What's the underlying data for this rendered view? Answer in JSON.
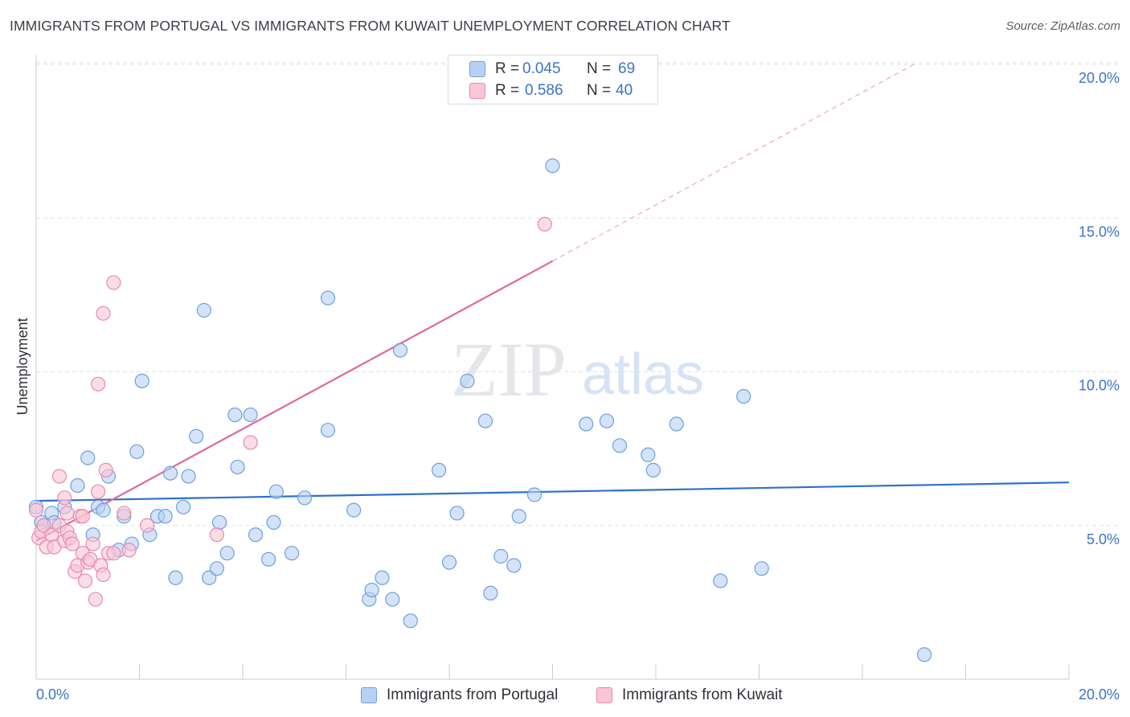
{
  "header": {
    "title": "IMMIGRANTS FROM PORTUGAL VS IMMIGRANTS FROM KUWAIT UNEMPLOYMENT CORRELATION CHART",
    "source": "Source: ZipAtlas.com"
  },
  "legend_top": {
    "series1": {
      "r_label": "R =",
      "r_value": "0.045",
      "n_label": "N =",
      "n_value": "69"
    },
    "series2": {
      "r_label": "R =",
      "r_value": "0.586",
      "n_label": "N =",
      "n_value": "40"
    }
  },
  "legend_bottom": {
    "series1": "Immigrants from Portugal",
    "series2": "Immigrants from Kuwait"
  },
  "watermark": {
    "zip": "ZIP",
    "atlas": "atlas"
  },
  "colors": {
    "blue_fill": "#b8d1f3",
    "blue_stroke": "#6e9fe0",
    "blue_line": "#2f6fd1",
    "pink_fill": "#f9c6d6",
    "pink_stroke": "#e98ba9",
    "pink_line": "#e0679a",
    "tick_text": "#3a74c9",
    "grid": "#dfe2e6"
  },
  "chart_data": {
    "type": "scatter",
    "title": "IMMIGRANTS FROM PORTUGAL VS IMMIGRANTS FROM KUWAIT UNEMPLOYMENT CORRELATION CHART",
    "xlabel": "",
    "ylabel": "Unemployment",
    "xlim": [
      0,
      20
    ],
    "ylim": [
      0,
      20.5
    ],
    "x_tick_labels": [
      "0.0%",
      "20.0%"
    ],
    "y_ticks": [
      5,
      10,
      15,
      20
    ],
    "y_tick_labels": [
      "5.0%",
      "10.0%",
      "15.0%",
      "20.0%"
    ],
    "grid": true,
    "legend_position": "top-center",
    "series": [
      {
        "name": "Immigrants from Portugal",
        "r": 0.045,
        "n": 69,
        "trend": {
          "x0": 0,
          "y0": 5.8,
          "x1": 20,
          "y1": 6.4
        },
        "points": [
          [
            0.0,
            5.6
          ],
          [
            0.1,
            5.1
          ],
          [
            0.15,
            5.0
          ],
          [
            0.3,
            5.4
          ],
          [
            0.35,
            5.1
          ],
          [
            0.55,
            5.6
          ],
          [
            0.8,
            6.3
          ],
          [
            1.0,
            7.2
          ],
          [
            1.1,
            4.7
          ],
          [
            1.2,
            5.6
          ],
          [
            1.3,
            5.5
          ],
          [
            1.4,
            6.6
          ],
          [
            1.6,
            4.2
          ],
          [
            1.7,
            5.3
          ],
          [
            1.85,
            4.4
          ],
          [
            1.95,
            7.4
          ],
          [
            2.05,
            9.7
          ],
          [
            2.2,
            4.7
          ],
          [
            2.35,
            5.3
          ],
          [
            2.5,
            5.3
          ],
          [
            2.6,
            6.7
          ],
          [
            2.7,
            3.3
          ],
          [
            2.85,
            5.6
          ],
          [
            2.95,
            6.6
          ],
          [
            3.1,
            7.9
          ],
          [
            3.25,
            12.0
          ],
          [
            3.35,
            3.3
          ],
          [
            3.5,
            3.6
          ],
          [
            3.55,
            5.1
          ],
          [
            3.7,
            4.1
          ],
          [
            3.85,
            8.6
          ],
          [
            3.9,
            6.9
          ],
          [
            4.15,
            8.6
          ],
          [
            4.25,
            4.7
          ],
          [
            4.5,
            3.9
          ],
          [
            4.6,
            5.1
          ],
          [
            4.65,
            6.1
          ],
          [
            4.95,
            4.1
          ],
          [
            5.2,
            5.9
          ],
          [
            5.65,
            12.4
          ],
          [
            5.65,
            8.1
          ],
          [
            6.15,
            5.5
          ],
          [
            6.45,
            2.6
          ],
          [
            6.5,
            2.9
          ],
          [
            6.7,
            3.3
          ],
          [
            6.9,
            2.6
          ],
          [
            7.05,
            10.7
          ],
          [
            7.25,
            1.9
          ],
          [
            7.8,
            6.8
          ],
          [
            8.0,
            3.8
          ],
          [
            8.15,
            5.4
          ],
          [
            8.35,
            9.7
          ],
          [
            8.7,
            8.4
          ],
          [
            8.8,
            2.8
          ],
          [
            9.0,
            4.0
          ],
          [
            9.25,
            3.7
          ],
          [
            9.35,
            5.3
          ],
          [
            9.65,
            6.0
          ],
          [
            10.0,
            16.7
          ],
          [
            10.65,
            8.3
          ],
          [
            11.05,
            8.4
          ],
          [
            11.3,
            7.6
          ],
          [
            11.85,
            7.3
          ],
          [
            11.95,
            6.8
          ],
          [
            12.4,
            8.3
          ],
          [
            13.25,
            3.2
          ],
          [
            13.7,
            9.2
          ],
          [
            14.05,
            3.6
          ],
          [
            17.2,
            0.8
          ]
        ]
      },
      {
        "name": "Immigrants from Kuwait",
        "r": 0.586,
        "n": 40,
        "trend": {
          "x0": 0,
          "y0": 4.5,
          "x1": 10.0,
          "y1": 13.6,
          "dashed_to_x": 17.0,
          "dashed_to_y": 20.0
        },
        "points": [
          [
            0.0,
            5.5
          ],
          [
            0.05,
            4.6
          ],
          [
            0.1,
            4.8
          ],
          [
            0.15,
            5.0
          ],
          [
            0.2,
            4.3
          ],
          [
            0.3,
            4.7
          ],
          [
            0.35,
            4.3
          ],
          [
            0.45,
            5.0
          ],
          [
            0.45,
            6.6
          ],
          [
            0.55,
            4.5
          ],
          [
            0.55,
            5.9
          ],
          [
            0.6,
            5.4
          ],
          [
            0.6,
            4.8
          ],
          [
            0.65,
            4.6
          ],
          [
            0.7,
            4.4
          ],
          [
            0.75,
            3.5
          ],
          [
            0.8,
            3.7
          ],
          [
            0.85,
            5.3
          ],
          [
            0.9,
            5.3
          ],
          [
            0.9,
            4.1
          ],
          [
            0.95,
            3.2
          ],
          [
            1.0,
            3.8
          ],
          [
            1.05,
            3.9
          ],
          [
            1.1,
            4.4
          ],
          [
            1.15,
            2.6
          ],
          [
            1.2,
            9.6
          ],
          [
            1.2,
            6.1
          ],
          [
            1.25,
            3.7
          ],
          [
            1.3,
            3.4
          ],
          [
            1.3,
            11.9
          ],
          [
            1.35,
            6.8
          ],
          [
            1.4,
            4.1
          ],
          [
            1.5,
            12.9
          ],
          [
            1.5,
            4.1
          ],
          [
            1.7,
            5.4
          ],
          [
            1.8,
            4.2
          ],
          [
            2.15,
            5.0
          ],
          [
            3.5,
            4.7
          ],
          [
            4.15,
            7.7
          ],
          [
            9.85,
            14.8
          ]
        ]
      }
    ]
  }
}
